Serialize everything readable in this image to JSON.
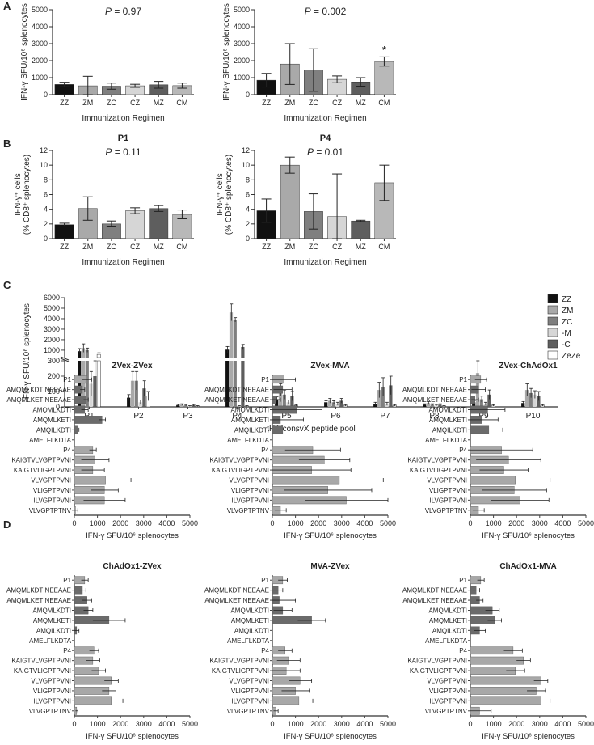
{
  "panels": [
    {
      "letter": "A"
    },
    {
      "letter": "B"
    },
    {
      "letter": "C"
    },
    {
      "letter": "D"
    }
  ],
  "groupColors": {
    "ZZ": "#111111",
    "ZM": "#a9a9a9",
    "ZC": "#7f7f7f",
    "CZ": "#d6d6d6",
    "MZ": "#5e5e5e",
    "CM": "#b8b8b8"
  },
  "chart_data": [
    {
      "id": "A-P1",
      "type": "bar",
      "panel": "A",
      "title": "P1",
      "p_label": "P",
      "p_value": "= 0.97",
      "ylabel": "IFN-γ SFU/10⁶ splenocytes",
      "xlabel": "Immunization Regimen",
      "categories": [
        "ZZ",
        "ZM",
        "ZC",
        "CZ",
        "MZ",
        "CM"
      ],
      "values": [
        600,
        520,
        500,
        520,
        580,
        530
      ],
      "errors": [
        130,
        560,
        180,
        90,
        200,
        150
      ],
      "yticks": [
        "0",
        "1000",
        "2000",
        "3000",
        "4000",
        "5000"
      ],
      "ylim": [
        0,
        5000
      ],
      "annotation": ""
    },
    {
      "id": "A-P4",
      "type": "bar",
      "panel": "A",
      "title": "P4",
      "p_label": "P",
      "p_value": "= 0.002",
      "ylabel": "IFN-γ SFU/10⁶ splenocytes",
      "xlabel": "Immunization Regimen",
      "categories": [
        "ZZ",
        "ZM",
        "ZC",
        "CZ",
        "MZ",
        "CM"
      ],
      "values": [
        850,
        1800,
        1450,
        900,
        750,
        1950
      ],
      "errors": [
        400,
        1200,
        1250,
        200,
        250,
        270
      ],
      "yticks": [
        "0",
        "1000",
        "2000",
        "3000",
        "4000",
        "5000"
      ],
      "ylim": [
        0,
        5000
      ],
      "annotation": "*"
    },
    {
      "id": "B-P1",
      "type": "bar",
      "panel": "B",
      "title": "P1",
      "p_label": "P",
      "p_value": "= 0.11",
      "ylabel_line1": "IFN-γ⁺ cells",
      "ylabel_line2": "(% CD8⁺ splenocytes)",
      "xlabel": "Immunization Regimen",
      "categories": [
        "ZZ",
        "ZM",
        "ZC",
        "CZ",
        "MZ",
        "CM"
      ],
      "values": [
        1.9,
        4.1,
        2.0,
        3.8,
        4.1,
        3.3
      ],
      "errors": [
        0.2,
        1.6,
        0.4,
        0.4,
        0.4,
        0.6
      ],
      "yticks": [
        "0",
        "2",
        "4",
        "6",
        "8",
        "10",
        "12"
      ],
      "ylim": [
        0,
        12
      ],
      "annotation": ""
    },
    {
      "id": "B-P4",
      "type": "bar",
      "panel": "B",
      "title": "P4",
      "p_label": "P",
      "p_value": "= 0.01",
      "ylabel_line1": "IFN-γ⁺ cells",
      "ylabel_line2": "(% CD8⁺ splenocytes)",
      "xlabel": "Immunization Regimen",
      "categories": [
        "ZZ",
        "ZM",
        "ZC",
        "CZ",
        "MZ",
        "CM"
      ],
      "values": [
        3.8,
        10.0,
        3.7,
        3.0,
        2.4,
        7.6
      ],
      "errors": [
        1.6,
        1.1,
        2.4,
        5.8,
        0.1,
        2.4
      ],
      "yticks": [
        "0",
        "2",
        "4",
        "6",
        "8",
        "10",
        "12"
      ],
      "ylim": [
        0,
        12
      ],
      "annotation": ""
    },
    {
      "id": "C",
      "type": "bar",
      "panel": "C",
      "ylabel": "IFN-γ SFU/10⁶ splenocytes",
      "xlabel": "tHIVconsvX peptide pool",
      "categories": [
        "P1",
        "P2",
        "P3",
        "P4",
        "P5",
        "P6",
        "P7",
        "P8",
        "P9",
        "P10"
      ],
      "yticks_upper": [
        "1000",
        "2000",
        "3000",
        "4000",
        "5000",
        "6000"
      ],
      "yticks_lower": [
        "0",
        "100",
        "200",
        "300"
      ],
      "ylim_lower": [
        0,
        300
      ],
      "ylim_upper": [
        300,
        6000
      ],
      "legend": [
        "ZZ",
        "ZM",
        "ZC",
        "-M",
        "-C",
        "ZeZe"
      ],
      "legend_colors": [
        "#111111",
        "#a9a9a9",
        "#7f7f7f",
        "#d6d6d6",
        "#5e5e5e",
        "#ffffff"
      ],
      "series": [
        {
          "name": "ZZ",
          "values": [
            900,
            60,
            10,
            1050,
            50,
            30,
            20,
            15,
            30,
            25
          ],
          "errors": [
            250,
            20,
            5,
            300,
            15,
            10,
            10,
            5,
            10,
            10
          ]
        },
        {
          "name": "ZM",
          "values": [
            1200,
            170,
            15,
            4600,
            110,
            40,
            110,
            25,
            220,
            110
          ],
          "errors": [
            400,
            60,
            5,
            800,
            40,
            15,
            50,
            10,
            80,
            40
          ]
        },
        {
          "name": "ZC",
          "values": [
            1000,
            170,
            10,
            3900,
            80,
            30,
            130,
            15,
            50,
            90
          ],
          "errors": [
            200,
            60,
            5,
            200,
            30,
            10,
            60,
            5,
            20,
            30
          ]
        },
        {
          "name": "-M",
          "values": [
            150,
            30,
            5,
            5,
            30,
            20,
            20,
            10,
            20,
            80
          ],
          "errors": [
            80,
            15,
            3,
            3,
            15,
            10,
            10,
            5,
            10,
            25
          ]
        },
        {
          "name": "-C",
          "values": [
            200,
            120,
            10,
            1300,
            70,
            40,
            140,
            15,
            80,
            70
          ],
          "errors": [
            200,
            50,
            5,
            250,
            30,
            15,
            60,
            5,
            30,
            30
          ]
        },
        {
          "name": "ZeZe",
          "values": [
            600,
            70,
            5,
            5,
            10,
            10,
            10,
            5,
            10,
            10
          ],
          "errors": [
            150,
            30,
            3,
            3,
            5,
            5,
            5,
            3,
            5,
            5
          ]
        }
      ]
    },
    {
      "id": "D-ZZ",
      "type": "bar",
      "orientation": "horizontal",
      "panel": "D",
      "title": "ZVex-ZVex",
      "categories": [
        "P1",
        "AMQMLKDTINEEAAE",
        "AMQMLKETINEEAAE",
        "AMQMLKDTI",
        "AMQMLKETI",
        "AMQILKDTI",
        "AMELFLKDTA",
        "P4",
        "KAIGTVLVGPTPVNI",
        "KAIGTVLIGPTPVNI",
        "VLVGPTPVNI",
        "VLIGPTPVNI",
        "ILVGPTPVNI",
        "VLVGPTPTNV"
      ],
      "values": [
        550,
        350,
        500,
        450,
        1200,
        150,
        0,
        800,
        900,
        800,
        1350,
        1300,
        1300,
        50
      ],
      "errors": [
        200,
        100,
        100,
        150,
        150,
        50,
        0,
        150,
        600,
        500,
        1100,
        600,
        900,
        100
      ],
      "xlabel": "IFN-γ SFU/10⁶ splenocytes",
      "xticks": [
        "0",
        "1000",
        "2000",
        "3000",
        "4000",
        "5000"
      ],
      "xlim": [
        0,
        5000
      ]
    },
    {
      "id": "D-ZM",
      "type": "bar",
      "orientation": "horizontal",
      "panel": "D",
      "title": "ZVex-MVA",
      "categories": [
        "P1",
        "AMQMLKDTINEEAAE",
        "AMQMLKETINEEAAE",
        "AMQMLKDTI",
        "AMQMLKETI",
        "AMQILKDTI",
        "AMELFLKDTA",
        "P4",
        "KAIGTVLVGPTPVNI",
        "KAIGTVLIGPTPVNI",
        "VLVGPTPVNI",
        "VLIGPTPVNI",
        "ILVGPTPVNI",
        "VLVGPTPTNV"
      ],
      "values": [
        500,
        450,
        150,
        1050,
        350,
        450,
        0,
        1750,
        2250,
        1700,
        2900,
        2400,
        3200,
        350
      ],
      "errors": [
        500,
        400,
        200,
        1100,
        1000,
        600,
        0,
        1200,
        1100,
        1700,
        1900,
        1900,
        1800,
        250
      ],
      "xlabel": "IFN-γ SFU/10⁶ splenocytes",
      "xticks": [
        "0",
        "1000",
        "2000",
        "3000",
        "4000",
        "5000"
      ],
      "xlim": [
        0,
        5000
      ]
    },
    {
      "id": "D-ZC",
      "type": "bar",
      "orientation": "horizontal",
      "panel": "D",
      "title": "ZVex-ChAdOx1",
      "categories": [
        "P1",
        "AMQMLKDTINEEAAE",
        "AMQMLKETINEEAAE",
        "AMQMLKDTI",
        "AMQMLKETI",
        "AMQILKDTI",
        "AMELFLKDTA",
        "P4",
        "KAIGTVLVGPTPVNI",
        "KAIGTVLIGPTPVNI",
        "VLVGPTPVNI",
        "VLIGPTPVNI",
        "ILVGPTPVNI",
        "VLVGPTPTNV"
      ],
      "values": [
        450,
        350,
        200,
        750,
        500,
        800,
        0,
        1350,
        1650,
        1450,
        1950,
        1900,
        2150,
        350
      ],
      "errors": [
        250,
        300,
        150,
        750,
        700,
        600,
        0,
        1350,
        1400,
        1050,
        1500,
        1400,
        1250,
        250
      ],
      "xlabel": "IFN-γ SFU/10⁶ splenocytes",
      "xticks": [
        "0",
        "1000",
        "2000",
        "3000",
        "4000",
        "5000"
      ],
      "xlim": [
        0,
        5000
      ]
    },
    {
      "id": "D-CZ",
      "type": "bar",
      "orientation": "horizontal",
      "panel": "D",
      "title": "ChAdOx1-ZVex",
      "categories": [
        "P1",
        "AMQMLKDTINEEAAE",
        "AMQMLKETINEEAAE",
        "AMQMLKDTI",
        "AMQMLKETI",
        "AMQILKDTI",
        "AMELFLKDTA",
        "P4",
        "KAIGTVLVGPTPVNI",
        "KAIGTVLIGPTPVNI",
        "VLVGPTPVNI",
        "VLIGPTPVNI",
        "ILVGPTPVNI",
        "VLVGPTPTNV"
      ],
      "values": [
        450,
        350,
        550,
        600,
        1500,
        100,
        0,
        850,
        800,
        1050,
        1600,
        1500,
        1600,
        100
      ],
      "errors": [
        150,
        150,
        200,
        200,
        700,
        100,
        0,
        200,
        300,
        300,
        300,
        300,
        500,
        50
      ],
      "xlabel": "IFN-γ SFU/10⁶ splenocytes",
      "xticks": [
        "0",
        "1000",
        "2000",
        "3000",
        "4000",
        "5000"
      ],
      "xlim": [
        0,
        5000
      ]
    },
    {
      "id": "D-MZ",
      "type": "bar",
      "orientation": "horizontal",
      "panel": "D",
      "title": "MVA-ZVex",
      "categories": [
        "P1",
        "AMQMLKDTINEEAAE",
        "AMQMLKETINEEAAE",
        "AMQMLKDTI",
        "AMQMLKETI",
        "AMQILKDTI",
        "AMELFLKDTA",
        "P4",
        "KAIGTVLVGPTPVNI",
        "KAIGTVLIGPTPVNI",
        "VLVGPTPVNI",
        "VLIGPTPVNI",
        "ILVGPTPVNI",
        "VLVGPTPTNV"
      ],
      "values": [
        450,
        250,
        300,
        450,
        1700,
        0,
        0,
        550,
        700,
        600,
        1200,
        1000,
        1150,
        150
      ],
      "errors": [
        200,
        200,
        700,
        400,
        600,
        0,
        0,
        300,
        500,
        600,
        500,
        600,
        600,
        100
      ],
      "xlabel": "IFN-γ SFU/10⁶ splenocytes",
      "xticks": [
        "0",
        "1000",
        "2000",
        "3000",
        "4000",
        "5000"
      ],
      "xlim": [
        0,
        5000
      ]
    },
    {
      "id": "D-CM",
      "type": "bar",
      "orientation": "horizontal",
      "panel": "D",
      "title": "ChAdOx1-MVA",
      "categories": [
        "P1",
        "AMQMLKDTINEEAAE",
        "AMQMLKETINEEAAE",
        "AMQMLKDTI",
        "AMQMLKETI",
        "AMQILKDTI",
        "AMELFLKDTA",
        "P4",
        "KAIGTVLVGPTPVNI",
        "KAIGTVLIGPTPVNI",
        "VLVGPTPVNI",
        "VLIGPTPVNI",
        "ILVGPTPVNI",
        "VLVGPTPTNV"
      ],
      "values": [
        450,
        250,
        400,
        950,
        1050,
        400,
        0,
        1850,
        2300,
        1950,
        3050,
        2850,
        3050,
        400
      ],
      "errors": [
        150,
        150,
        150,
        300,
        300,
        250,
        0,
        400,
        300,
        400,
        300,
        400,
        400,
        500
      ],
      "xlabel": "IFN-γ SFU/10⁶ splenocytes",
      "xticks": [
        "0",
        "1000",
        "2000",
        "3000",
        "4000",
        "5000"
      ],
      "xlim": [
        0,
        5000
      ]
    }
  ]
}
